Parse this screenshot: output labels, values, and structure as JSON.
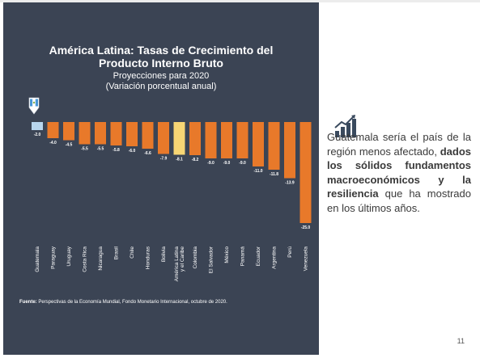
{
  "title_line1": "América Latina: Tasas de Crecimiento del",
  "title_line2": "Producto Interno Bruto",
  "subtitle_line1": "Proyecciones para 2020",
  "subtitle_line2": "(Variación porcentual anual)",
  "source_label": "Fuente:",
  "source_text": " Perspectivas de la Economía Mundial, Fondo Monetario Internacional, octubre de 2020.",
  "note": {
    "part1": "Guatemala sería el país de la región menos afectado, ",
    "bold": "dados los sólidos fundamentos macroeconómicos y la resiliencia",
    "part2": " que ha mostrado en los últimos años."
  },
  "page_number": "11",
  "colors": {
    "panel": "#3b4454",
    "bar": "#e8792a",
    "highlight_latam": "#f7d674",
    "highlight_guatemala": "#b8d6ee"
  },
  "chart_data": {
    "type": "bar",
    "categories": [
      "Guatemala",
      "Paraguay",
      "Uruguay",
      "Costa Rica",
      "Nicaragua",
      "Brasil",
      "Chile",
      "Honduras",
      "Bolivia",
      "América Latina y el Caribe",
      "Colombia",
      "El Salvador",
      "México",
      "Panamá",
      "Ecuador",
      "Argentina",
      "Perú",
      "Venezuela"
    ],
    "values": [
      -2.0,
      -4.0,
      -4.5,
      -5.5,
      -5.5,
      -5.8,
      -6.0,
      -6.6,
      -7.9,
      -8.1,
      -8.2,
      -9.0,
      -9.0,
      -9.0,
      -11.0,
      -11.8,
      -13.9,
      -25.0
    ],
    "value_labels": [
      "-2.0",
      "-4.0",
      "-4.5",
      "-5.5",
      "-5.5",
      "-5.8",
      "-6.0",
      "-6.6",
      "-7.9",
      "-8.1",
      "-8.2",
      "-9.0",
      "-9.0",
      "-9.0",
      "-11.0",
      "-11.8",
      "-13.9",
      "-25.0"
    ],
    "highlight": {
      "Guatemala": "light-blue",
      "América Latina y el Caribe": "yellow"
    },
    "ylim": [
      -25,
      0
    ],
    "grid": false,
    "legend": false
  }
}
